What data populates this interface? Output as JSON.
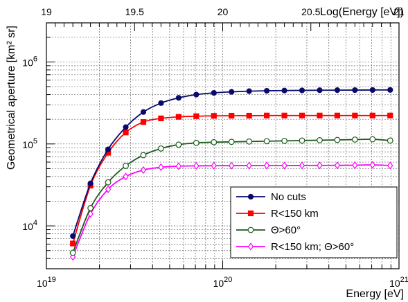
{
  "chart_data": {
    "type": "line",
    "title": "",
    "xlabel": "Energy [eV]",
    "ylabel": "Geometrical aperture [km² sr]",
    "top_axis_label": "Log(Energy [eV])",
    "x_scale": "log",
    "y_scale": "log",
    "xlim": [
      1e+19,
      1e+21
    ],
    "ylim": [
      3000,
      3000000
    ],
    "grid": true,
    "legend_position": "bottom-right",
    "top_axis_ticks": [
      "19",
      "19.5",
      "20",
      "20.5",
      "21"
    ],
    "x_tick_labels": [
      {
        "base": "10",
        "exp": "19"
      },
      {
        "base": "10",
        "exp": "20"
      },
      {
        "base": "10",
        "exp": "21"
      }
    ],
    "y_tick_labels": [
      {
        "base": "10",
        "exp": "4"
      },
      {
        "base": "10",
        "exp": "5"
      },
      {
        "base": "10",
        "exp": "6"
      }
    ],
    "x": [
      19.15,
      19.25,
      19.35,
      19.45,
      19.55,
      19.65,
      19.75,
      19.85,
      19.95,
      20.05,
      20.15,
      20.25,
      20.35,
      20.45,
      20.55,
      20.65,
      20.75,
      20.85,
      20.95
    ],
    "series": [
      {
        "name": "No cuts",
        "color": "#0a0a6e",
        "marker": "filled-circle",
        "values": [
          7500,
          33000,
          86000,
          160000,
          245000,
          315000,
          365000,
          400000,
          420000,
          432000,
          440000,
          445000,
          448000,
          450000,
          452000,
          453000,
          454000,
          455000,
          456000
        ]
      },
      {
        "name": "R<150 km",
        "color": "#ff0000",
        "marker": "filled-square",
        "values": [
          6100,
          31000,
          78000,
          138000,
          185000,
          205000,
          214000,
          218000,
          220000,
          221000,
          221000,
          222000,
          222000,
          222000,
          222000,
          222000,
          222000,
          222000,
          222000
        ]
      },
      {
        "name": "Θ>60°",
        "color": "#1a5a1a",
        "marker": "open-circle",
        "values": [
          4700,
          16500,
          34000,
          54000,
          73000,
          88000,
          98000,
          103000,
          105000,
          106000,
          107000,
          108000,
          109000,
          110000,
          111000,
          112000,
          113000,
          114000,
          110000
        ]
      },
      {
        "name": "R<150 km; Θ>60°",
        "color": "#ff00ff",
        "marker": "open-diamond",
        "values": [
          4200,
          14000,
          28000,
          40000,
          48000,
          52000,
          53500,
          54000,
          54200,
          54300,
          54400,
          54500,
          54500,
          54600,
          54700,
          54800,
          55000,
          55500,
          54500
        ]
      }
    ]
  }
}
